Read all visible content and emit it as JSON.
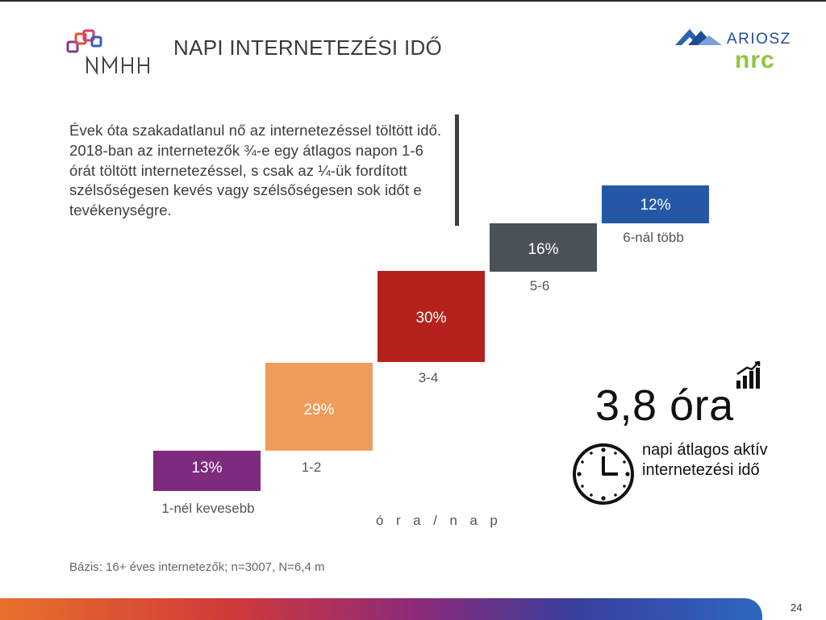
{
  "header": {
    "title": "NAPI INTERNETEZÉSI IDŐ",
    "left_logo_text": "NMHH",
    "right_logo_text": "ARIOSZ",
    "right_logo_sub": "nrc"
  },
  "intro": {
    "text": "Évek óta szakadatlanul nő az internetezéssel töltött idő. 2018-ban az internetezők ¾-e egy átlagos napon 1-6 órát töltött internetezéssel, s csak az ¼-ük fordított szélsőségesen kevés vagy szélsőségesen sok időt e tevékenységre."
  },
  "chart_data": {
    "type": "bar",
    "categories": [
      "1-nél kevesebb",
      "1-2",
      "3-4",
      "5-6",
      "6-nál több"
    ],
    "values": [
      13,
      29,
      30,
      16,
      12
    ],
    "value_labels": [
      "13%",
      "29%",
      "30%",
      "16%",
      "12%"
    ],
    "colors": [
      "#7e2a7e",
      "#ee9c5c",
      "#b5221d",
      "#4a5158",
      "#2458a6"
    ],
    "xlabel": "ó r a / n a p",
    "title": "",
    "unit": "%"
  },
  "highlight": {
    "value": "3,8 óra",
    "caption": "napi átlagos aktív internetezési idő"
  },
  "footer": {
    "note": "Bázis: 16+ éves internetezők; n=3007, N=6,4 m",
    "page": "24"
  },
  "icons": [
    "nmhh-logo",
    "ariosz-nrc-logo",
    "rising-bars-icon",
    "clock-icon"
  ]
}
